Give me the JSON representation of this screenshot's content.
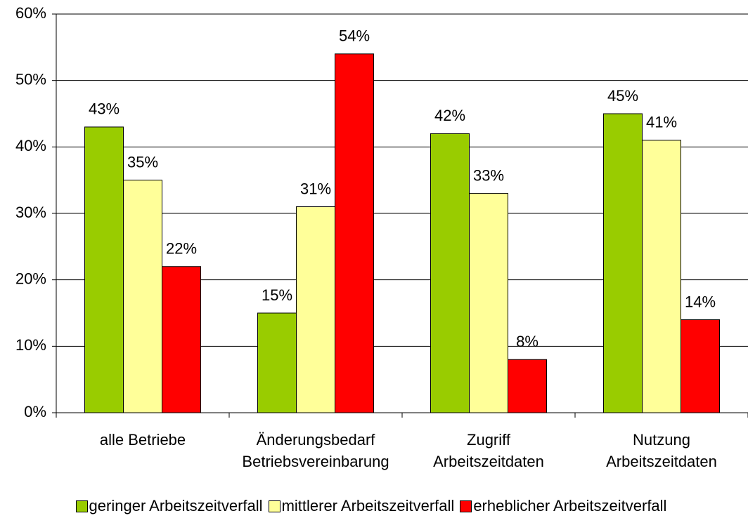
{
  "chart_data": {
    "type": "bar",
    "categories": [
      "alle Betriebe",
      "Änderungsbedarf\nBetriebsvereinbarung",
      "Zugriff\nArbeitszeitdaten",
      "Nutzung\nArbeitszeitdaten"
    ],
    "series": [
      {
        "name": "geringer Arbeitszeitverfall",
        "color": "#99cc00",
        "values": [
          43,
          15,
          42,
          45
        ],
        "value_labels": [
          "43%",
          "15%",
          "42%",
          "45%"
        ]
      },
      {
        "name": "mittlerer Arbeitszeitverfall",
        "color": "#ffff99",
        "values": [
          35,
          31,
          33,
          41
        ],
        "value_labels": [
          "35%",
          "31%",
          "33%",
          "41%"
        ]
      },
      {
        "name": "erheblicher Arbeitszeitverfall",
        "color": "#ff0000",
        "values": [
          22,
          54,
          8,
          14
        ],
        "value_labels": [
          "22%",
          "54%",
          "8%",
          "14%"
        ]
      }
    ],
    "ylim": [
      0,
      60
    ],
    "yticks": [
      {
        "value": 0,
        "label": "0%"
      },
      {
        "value": 10,
        "label": "10%"
      },
      {
        "value": 20,
        "label": "20%"
      },
      {
        "value": 30,
        "label": "30%"
      },
      {
        "value": 40,
        "label": "40%"
      },
      {
        "value": 50,
        "label": "50%"
      },
      {
        "value": 60,
        "label": "60%"
      }
    ],
    "grid": true,
    "legend": "bottom"
  }
}
